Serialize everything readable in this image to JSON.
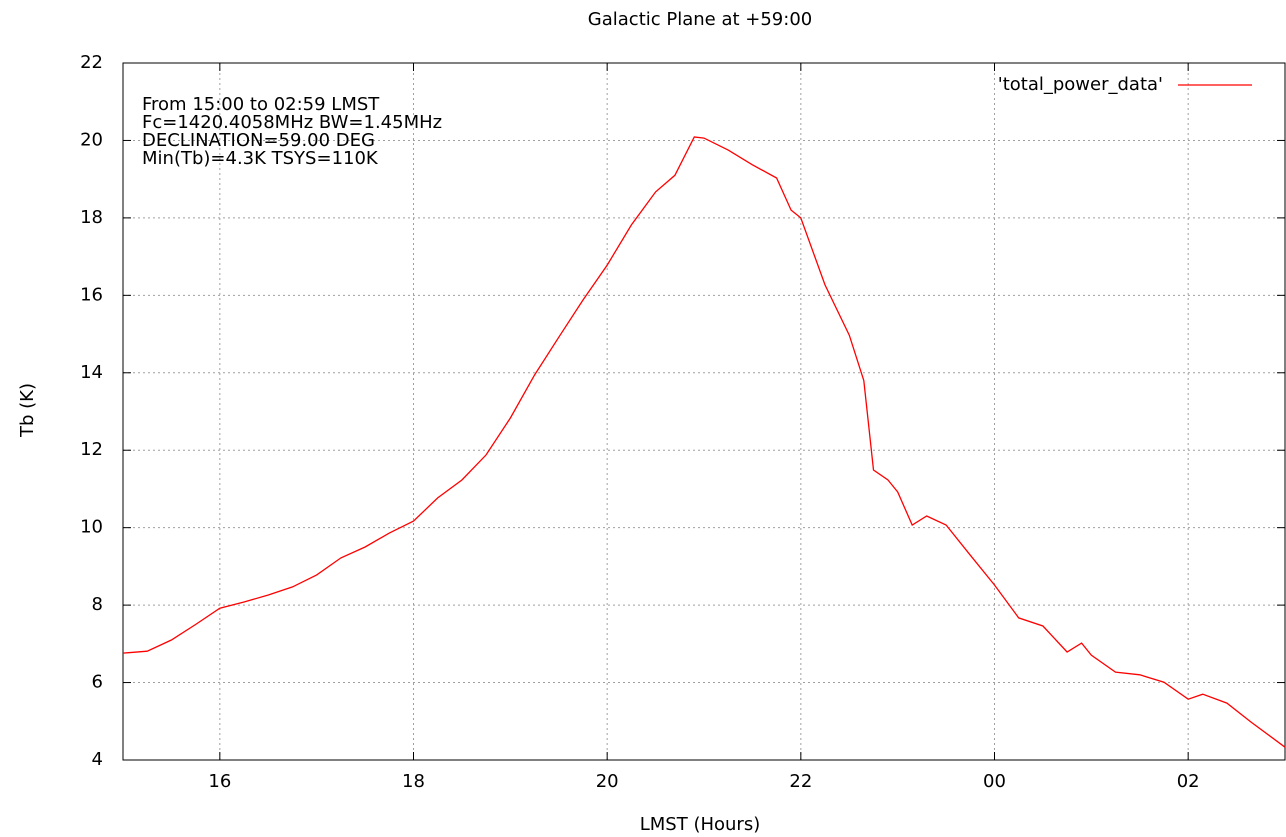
{
  "chart_data": {
    "type": "line",
    "title": "Galactic Plane at +59:00",
    "xlabel": "LMST (Hours)",
    "ylabel": "Tb (K)",
    "annotations": [
      "From 15:00 to 02:59 LMST",
      "Fc=1420.4058MHz BW=1.45MHz",
      "DECLINATION=59.00 DEG",
      "Min(Tb)=4.3K TSYS=110K"
    ],
    "x": [
      15.0,
      15.25,
      15.5,
      15.75,
      16.0,
      16.25,
      16.5,
      16.75,
      17.0,
      17.25,
      17.5,
      17.75,
      18.0,
      18.25,
      18.5,
      18.75,
      19.0,
      19.25,
      19.5,
      19.75,
      20.0,
      20.25,
      20.5,
      20.7,
      20.9,
      21.0,
      21.25,
      21.5,
      21.75,
      21.9,
      22.0,
      22.25,
      22.5,
      22.65,
      22.75,
      22.9,
      23.0,
      23.15,
      23.3,
      23.5,
      23.75,
      24.0,
      24.25,
      24.5,
      24.75,
      24.9,
      25.0,
      25.25,
      25.5,
      25.75,
      26.0,
      26.15,
      26.4,
      26.65,
      27.0
    ],
    "series": [
      {
        "name": "'total_power_data'",
        "color": "#ff0000",
        "values": [
          6.76,
          6.81,
          7.1,
          7.5,
          7.92,
          8.08,
          8.26,
          8.47,
          8.78,
          9.22,
          9.5,
          9.86,
          10.17,
          10.77,
          11.23,
          11.88,
          12.83,
          13.94,
          14.92,
          15.88,
          16.78,
          17.82,
          18.67,
          19.1,
          20.09,
          20.06,
          19.75,
          19.37,
          19.03,
          18.2,
          18.0,
          16.27,
          14.97,
          13.8,
          11.49,
          11.23,
          10.92,
          10.07,
          10.3,
          10.07,
          9.29,
          8.52,
          7.67,
          7.46,
          6.79,
          7.02,
          6.71,
          6.27,
          6.2,
          6.01,
          5.57,
          5.7,
          5.47,
          4.98,
          4.33
        ]
      }
    ],
    "xlim": [
      15,
      27
    ],
    "xticks": [
      16,
      18,
      20,
      22,
      {
        "value": 24,
        "label": "00"
      },
      {
        "value": 26,
        "label": "02"
      }
    ],
    "ylim": [
      4,
      22
    ],
    "yticks": [
      4,
      6,
      8,
      10,
      12,
      14,
      16,
      18,
      20,
      22
    ],
    "grid": true,
    "legend": "top-right"
  }
}
